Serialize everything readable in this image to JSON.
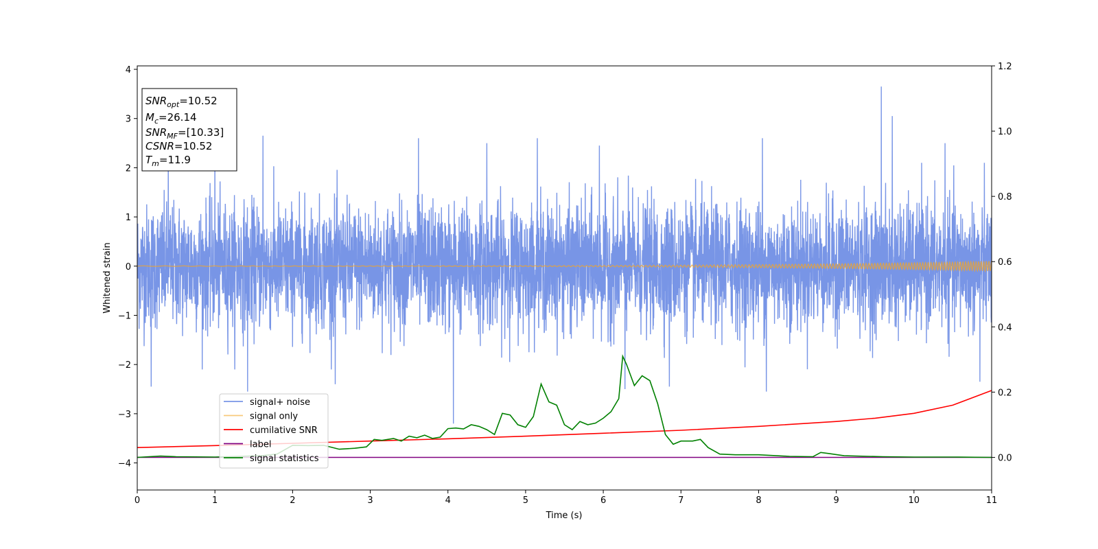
{
  "chart_data": {
    "type": "line",
    "xlabel": "Time (s)",
    "ylabel": "Whitened strain",
    "xlim": [
      0,
      11
    ],
    "ylim_left": [
      -4.55,
      4.07
    ],
    "ylim_right": [
      -0.1,
      1.2
    ],
    "x_ticks": [
      0,
      1,
      2,
      3,
      4,
      5,
      6,
      7,
      8,
      9,
      10,
      11
    ],
    "x_tick_labels": [
      "0",
      "1",
      "2",
      "3",
      "4",
      "5",
      "6",
      "7",
      "8",
      "9",
      "10",
      "11"
    ],
    "y_left_ticks": [
      4,
      3,
      2,
      1,
      0,
      -1,
      -2,
      -3,
      -4
    ],
    "y_left_tick_labels": [
      "4",
      "3",
      "2",
      "1",
      "0",
      "−1",
      "−2",
      "−3",
      "−4"
    ],
    "y_right_ticks": [
      1.2,
      1.0,
      0.8,
      0.6,
      0.4,
      0.2,
      0.0
    ],
    "y_right_tick_labels": [
      "1.2",
      "1.0",
      "0.8",
      "0.6",
      "0.4",
      "0.2",
      "0.0"
    ],
    "grid": false,
    "legend_position": "lower-left",
    "annotation": [
      {
        "var": "SNR",
        "sub": "opt",
        "value": "=10.52"
      },
      {
        "var": "M",
        "sub": "c",
        "value": "=26.14"
      },
      {
        "var": "SNR",
        "sub": "MF",
        "value": "=[10.33]"
      },
      {
        "var": "CSNR",
        "sub": "",
        "value": "=10.52"
      },
      {
        "var": "T",
        "sub": "m",
        "value": "=11.9"
      }
    ],
    "series": [
      {
        "name": "signal+ noise",
        "axis": "left",
        "color": "#7895e6",
        "style": "dense random noise, amplitude about ±1.5 with spikes near ±2.5",
        "spikes": [
          [
            0.18,
            -2.45
          ],
          [
            0.4,
            2.2
          ],
          [
            1.0,
            2.6
          ],
          [
            1.42,
            -2.55
          ],
          [
            1.62,
            2.65
          ],
          [
            2.55,
            -2.4
          ],
          [
            3.62,
            2.6
          ],
          [
            4.07,
            -3.2
          ],
          [
            4.5,
            2.5
          ],
          [
            5.15,
            2.6
          ],
          [
            5.95,
            2.45
          ],
          [
            6.28,
            -2.5
          ],
          [
            6.85,
            -2.45
          ],
          [
            8.05,
            2.6
          ],
          [
            8.1,
            -2.55
          ],
          [
            9.58,
            3.65
          ],
          [
            9.72,
            3.05
          ],
          [
            10.4,
            2.5
          ],
          [
            10.85,
            -2.35
          ]
        ]
      },
      {
        "name": "signal only",
        "axis": "left",
        "color": "#f5a623",
        "style": "chirp growing in amplitude, from ~0.005 at t=0 to ~0.1 at t=11",
        "amp_start": 0.005,
        "amp_end": 0.1
      },
      {
        "name": "cumilative SNR",
        "axis": "right",
        "color": "#ff0000",
        "x": [
          0,
          1,
          2,
          3,
          4,
          5,
          6,
          7,
          8,
          9,
          9.5,
          10,
          10.5,
          11
        ],
        "values": [
          0.03,
          0.036,
          0.043,
          0.05,
          0.057,
          0.065,
          0.074,
          0.083,
          0.095,
          0.11,
          0.12,
          0.135,
          0.16,
          0.205
        ]
      },
      {
        "name": "label",
        "axis": "right",
        "color": "#800080",
        "x": [
          0,
          11
        ],
        "values": [
          0.0,
          0.0
        ]
      },
      {
        "name": "signal statistics",
        "axis": "right",
        "color": "#008000",
        "x": [
          0,
          0.3,
          0.5,
          1.0,
          1.3,
          1.6,
          1.8,
          2.0,
          2.2,
          2.4,
          2.6,
          2.8,
          2.95,
          3.05,
          3.15,
          3.3,
          3.4,
          3.5,
          3.6,
          3.7,
          3.8,
          3.9,
          4.0,
          4.1,
          4.2,
          4.3,
          4.4,
          4.5,
          4.6,
          4.7,
          4.8,
          4.9,
          5.0,
          5.1,
          5.2,
          5.3,
          5.4,
          5.5,
          5.6,
          5.7,
          5.8,
          5.9,
          6.0,
          6.1,
          6.2,
          6.25,
          6.3,
          6.4,
          6.5,
          6.6,
          6.7,
          6.8,
          6.9,
          7.0,
          7.15,
          7.25,
          7.35,
          7.5,
          7.7,
          8.0,
          8.4,
          8.7,
          8.8,
          8.9,
          9.1,
          9.6,
          10.0,
          10.5,
          11.0
        ],
        "values": [
          0.0,
          0.004,
          0.002,
          0.001,
          0.003,
          0.005,
          0.01,
          0.037,
          0.036,
          0.037,
          0.025,
          0.028,
          0.032,
          0.055,
          0.052,
          0.058,
          0.05,
          0.065,
          0.06,
          0.068,
          0.058,
          0.062,
          0.088,
          0.09,
          0.087,
          0.1,
          0.095,
          0.085,
          0.07,
          0.135,
          0.13,
          0.1,
          0.092,
          0.125,
          0.225,
          0.17,
          0.16,
          0.1,
          0.085,
          0.11,
          0.1,
          0.105,
          0.12,
          0.14,
          0.18,
          0.31,
          0.285,
          0.22,
          0.25,
          0.235,
          0.165,
          0.07,
          0.04,
          0.05,
          0.05,
          0.055,
          0.03,
          0.01,
          0.008,
          0.008,
          0.003,
          0.002,
          0.015,
          0.012,
          0.005,
          0.002,
          0.001,
          0.001,
          0.0
        ]
      }
    ]
  }
}
